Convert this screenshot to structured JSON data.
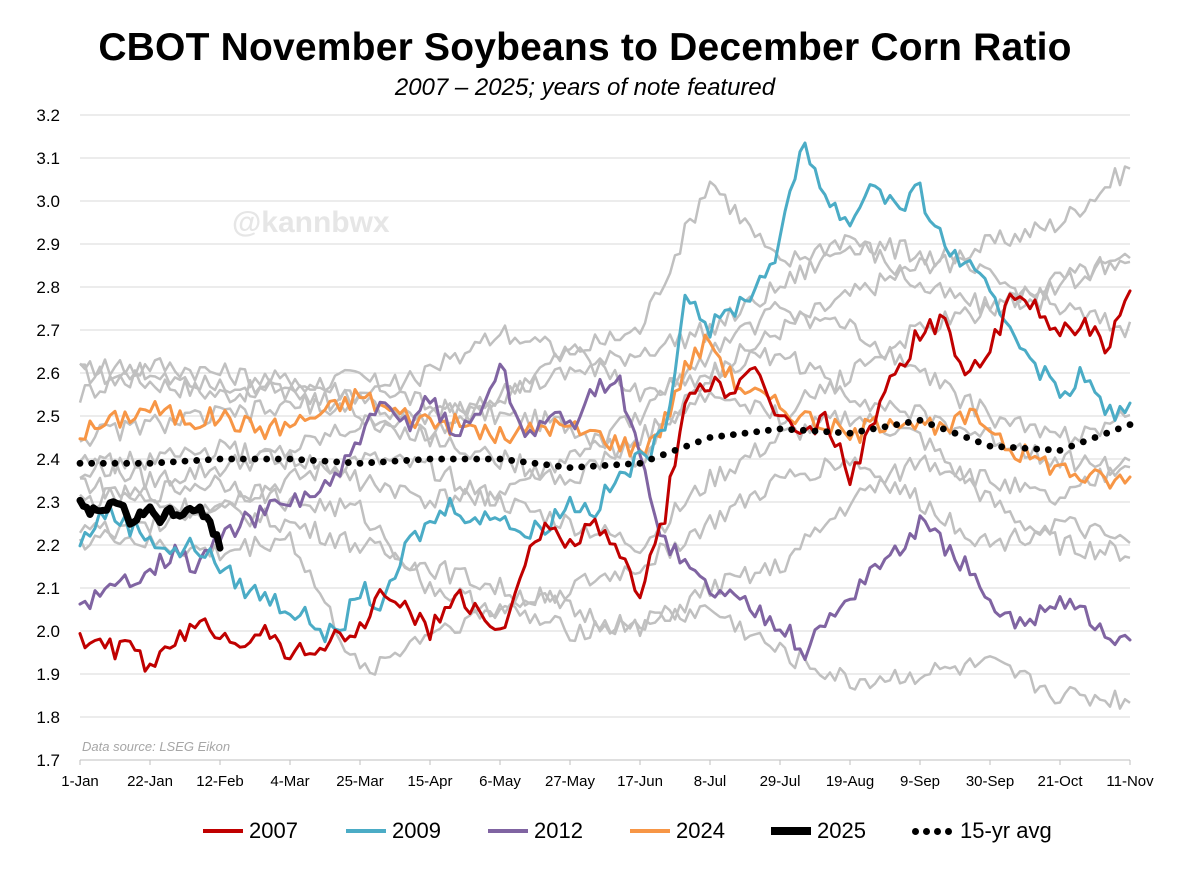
{
  "chart_data": {
    "type": "line",
    "title": "CBOT November Soybeans to December Corn Ratio",
    "subtitle": "2007 – 2025; years of note featured",
    "watermark": "@kannbwx",
    "source": "Data source: LSEG Eikon",
    "xlabel": "",
    "ylabel": "",
    "ylim": [
      1.7,
      3.2
    ],
    "yticks": [
      "3.2",
      "3.1",
      "3.0",
      "2.9",
      "2.8",
      "2.7",
      "2.6",
      "2.5",
      "2.4",
      "2.3",
      "2.2",
      "2.1",
      "2.0",
      "1.9",
      "1.8",
      "1.7"
    ],
    "xlim": [
      0,
      315
    ],
    "xticks": [
      {
        "label": "1-Jan",
        "day": 0
      },
      {
        "label": "22-Jan",
        "day": 21
      },
      {
        "label": "12-Feb",
        "day": 42
      },
      {
        "label": "4-Mar",
        "day": 63
      },
      {
        "label": "25-Mar",
        "day": 84
      },
      {
        "label": "15-Apr",
        "day": 105
      },
      {
        "label": "6-May",
        "day": 126
      },
      {
        "label": "27-May",
        "day": 147
      },
      {
        "label": "17-Jun",
        "day": 168
      },
      {
        "label": "8-Jul",
        "day": 189
      },
      {
        "label": "29-Jul",
        "day": 210
      },
      {
        "label": "19-Aug",
        "day": 231
      },
      {
        "label": "9-Sep",
        "day": 252
      },
      {
        "label": "30-Sep",
        "day": 273
      },
      {
        "label": "21-Oct",
        "day": 294
      },
      {
        "label": "11-Nov",
        "day": 315
      }
    ],
    "colors": {
      "2007": "#c00000",
      "2009": "#4bacc6",
      "2012": "#8064a2",
      "2024": "#f79646",
      "2025": "#000000",
      "avg": "#000000",
      "other": "#c0c0c0"
    },
    "background_series": [
      {
        "name": "other-a",
        "x": [
          0,
          21,
          42,
          63,
          84,
          105,
          126,
          147,
          168,
          189,
          210,
          231,
          252,
          273,
          294,
          315
        ],
        "values": [
          2.6,
          2.58,
          2.55,
          2.57,
          2.59,
          2.52,
          2.5,
          2.48,
          2.4,
          2.6,
          2.7,
          2.78,
          2.85,
          2.9,
          2.95,
          3.08
        ]
      },
      {
        "name": "other-b",
        "x": [
          0,
          21,
          42,
          63,
          84,
          105,
          126,
          147,
          168,
          189,
          210,
          231,
          252,
          273,
          294,
          315
        ],
        "values": [
          2.55,
          2.62,
          2.6,
          2.58,
          2.55,
          2.45,
          2.55,
          2.65,
          2.7,
          3.05,
          2.85,
          2.92,
          2.8,
          2.75,
          2.82,
          2.86
        ]
      },
      {
        "name": "other-c",
        "x": [
          0,
          21,
          42,
          63,
          84,
          105,
          126,
          147,
          168,
          189,
          210,
          231,
          252,
          273,
          294,
          315
        ],
        "values": [
          2.4,
          2.35,
          2.38,
          2.42,
          2.48,
          2.5,
          2.55,
          2.6,
          2.65,
          2.7,
          2.8,
          2.9,
          2.88,
          2.82,
          2.75,
          2.7
        ]
      },
      {
        "name": "other-d",
        "x": [
          0,
          21,
          42,
          63,
          84,
          105,
          126,
          147,
          168,
          189,
          210,
          231,
          252,
          273,
          294,
          315
        ],
        "values": [
          2.35,
          2.3,
          2.28,
          2.25,
          2.2,
          2.15,
          2.1,
          2.05,
          2.0,
          2.1,
          2.15,
          2.3,
          2.4,
          2.35,
          2.3,
          2.4
        ]
      },
      {
        "name": "other-e",
        "x": [
          0,
          21,
          42,
          63,
          84,
          105,
          126,
          147,
          168,
          189,
          210,
          231,
          252,
          273,
          294,
          315
        ],
        "values": [
          2.3,
          2.32,
          2.35,
          2.3,
          2.28,
          2.1,
          2.05,
          2.0,
          2.02,
          2.05,
          1.95,
          1.88,
          1.9,
          1.92,
          1.85,
          1.84
        ]
      },
      {
        "name": "other-f",
        "x": [
          0,
          21,
          42,
          63,
          84,
          105,
          126,
          147,
          168,
          189,
          210,
          231,
          252,
          273,
          294,
          315
        ],
        "values": [
          2.25,
          2.2,
          2.18,
          2.22,
          1.9,
          2.0,
          2.05,
          2.1,
          2.15,
          2.25,
          2.35,
          2.4,
          2.3,
          2.2,
          2.25,
          2.2
        ]
      },
      {
        "name": "other-g",
        "x": [
          0,
          21,
          42,
          63,
          84,
          105,
          126,
          147,
          168,
          189,
          210,
          231,
          252,
          273,
          294,
          315
        ],
        "values": [
          2.45,
          2.48,
          2.5,
          2.52,
          2.55,
          2.6,
          2.7,
          2.65,
          2.55,
          2.6,
          2.65,
          2.55,
          2.5,
          2.45,
          2.4,
          2.38
        ]
      },
      {
        "name": "other-h",
        "x": [
          0,
          21,
          42,
          63,
          84,
          105,
          126,
          147,
          168,
          189,
          210,
          231,
          252,
          273,
          294,
          315
        ],
        "values": [
          2.62,
          2.6,
          2.58,
          2.55,
          2.5,
          2.45,
          2.4,
          2.35,
          2.45,
          2.55,
          2.5,
          2.6,
          2.7,
          2.75,
          2.8,
          2.88
        ]
      },
      {
        "name": "other-i",
        "x": [
          0,
          21,
          42,
          63,
          84,
          105,
          126,
          147,
          168,
          189,
          210,
          231,
          252,
          273,
          294,
          315
        ],
        "values": [
          2.2,
          2.25,
          2.3,
          2.35,
          2.4,
          2.38,
          2.3,
          2.25,
          2.2,
          2.35,
          2.45,
          2.5,
          2.45,
          2.3,
          2.2,
          2.18
        ]
      },
      {
        "name": "other-j",
        "x": [
          0,
          21,
          42,
          63,
          84,
          105,
          126,
          147,
          168,
          189,
          210,
          231,
          252,
          273,
          294,
          315
        ],
        "values": [
          2.38,
          2.4,
          2.42,
          2.4,
          2.35,
          2.3,
          2.32,
          2.4,
          2.5,
          2.65,
          2.75,
          2.7,
          2.6,
          2.5,
          2.45,
          2.5
        ]
      }
    ],
    "series": [
      {
        "name": "2007",
        "x": [
          0,
          7,
          14,
          21,
          28,
          35,
          42,
          49,
          56,
          63,
          70,
          77,
          84,
          91,
          98,
          105,
          112,
          119,
          126,
          133,
          140,
          147,
          154,
          161,
          168,
          175,
          182,
          189,
          196,
          203,
          210,
          217,
          224,
          231,
          238,
          245,
          252,
          259,
          266,
          273,
          280,
          287,
          294,
          301,
          308,
          315
        ],
        "values": [
          1.99,
          1.96,
          1.96,
          1.92,
          1.96,
          2.02,
          2.0,
          1.98,
          1.99,
          1.95,
          1.96,
          1.98,
          2.0,
          2.1,
          2.05,
          2.0,
          2.08,
          2.05,
          2.0,
          2.15,
          2.24,
          2.2,
          2.25,
          2.18,
          2.1,
          2.25,
          2.55,
          2.58,
          2.55,
          2.6,
          2.5,
          2.45,
          2.5,
          2.35,
          2.5,
          2.6,
          2.7,
          2.72,
          2.6,
          2.65,
          2.78,
          2.75,
          2.7,
          2.72,
          2.65,
          2.78
        ]
      },
      {
        "name": "2009",
        "x": [
          0,
          7,
          14,
          21,
          28,
          35,
          42,
          49,
          56,
          63,
          70,
          77,
          84,
          91,
          98,
          105,
          112,
          119,
          126,
          133,
          140,
          147,
          154,
          161,
          168,
          175,
          182,
          189,
          196,
          203,
          210,
          217,
          224,
          231,
          238,
          245,
          252,
          259,
          266,
          273,
          280,
          287,
          294,
          301,
          308,
          315
        ],
        "values": [
          2.2,
          2.28,
          2.25,
          2.22,
          2.18,
          2.2,
          2.15,
          2.1,
          2.08,
          2.05,
          2.02,
          1.98,
          2.1,
          2.05,
          2.2,
          2.25,
          2.3,
          2.25,
          2.28,
          2.22,
          2.25,
          2.3,
          2.28,
          2.35,
          2.4,
          2.45,
          2.8,
          2.7,
          2.75,
          2.8,
          2.9,
          3.15,
          3.0,
          2.95,
          3.05,
          2.98,
          3.02,
          2.9,
          2.85,
          2.78,
          2.7,
          2.62,
          2.55,
          2.6,
          2.5,
          2.52
        ]
      },
      {
        "name": "2012",
        "x": [
          0,
          7,
          14,
          21,
          28,
          35,
          42,
          49,
          56,
          63,
          70,
          77,
          84,
          91,
          98,
          105,
          112,
          119,
          126,
          133,
          140,
          147,
          154,
          161,
          168,
          175,
          182,
          189,
          196,
          203,
          210,
          217,
          224,
          231,
          238,
          245,
          252,
          259,
          266,
          273,
          280,
          287,
          294,
          301,
          308,
          315
        ],
        "values": [
          2.07,
          2.08,
          2.12,
          2.15,
          2.18,
          2.15,
          2.22,
          2.25,
          2.28,
          2.3,
          2.32,
          2.35,
          2.45,
          2.52,
          2.48,
          2.55,
          2.45,
          2.5,
          2.62,
          2.45,
          2.5,
          2.48,
          2.55,
          2.6,
          2.4,
          2.22,
          2.15,
          2.1,
          2.08,
          2.05,
          2.02,
          1.95,
          2.02,
          2.08,
          2.15,
          2.18,
          2.25,
          2.2,
          2.15,
          2.05,
          2.02,
          2.04,
          2.08,
          2.05,
          1.98,
          1.97
        ]
      },
      {
        "name": "2024",
        "x": [
          0,
          7,
          14,
          21,
          28,
          35,
          42,
          49,
          56,
          63,
          70,
          77,
          84,
          91,
          98,
          105,
          112,
          119,
          126,
          133,
          140,
          147,
          154,
          161,
          168,
          175,
          182,
          189,
          196,
          203,
          210,
          217,
          224,
          231,
          238,
          245,
          252,
          259,
          266,
          273,
          280,
          287,
          294,
          301,
          308,
          315
        ],
        "values": [
          2.46,
          2.48,
          2.5,
          2.52,
          2.5,
          2.49,
          2.5,
          2.48,
          2.47,
          2.48,
          2.5,
          2.52,
          2.55,
          2.52,
          2.5,
          2.49,
          2.48,
          2.47,
          2.45,
          2.46,
          2.48,
          2.47,
          2.46,
          2.44,
          2.42,
          2.48,
          2.62,
          2.68,
          2.58,
          2.55,
          2.52,
          2.5,
          2.48,
          2.45,
          2.48,
          2.5,
          2.48,
          2.46,
          2.5,
          2.48,
          2.42,
          2.4,
          2.38,
          2.36,
          2.35,
          2.35
        ]
      },
      {
        "name": "2025",
        "x": [
          0,
          3,
          6,
          9,
          12,
          15,
          18,
          21,
          24,
          27,
          30,
          33,
          36,
          39,
          42
        ],
        "values": [
          2.3,
          2.28,
          2.27,
          2.29,
          2.3,
          2.25,
          2.27,
          2.28,
          2.26,
          2.28,
          2.27,
          2.29,
          2.28,
          2.25,
          2.2
        ]
      },
      {
        "name": "15-yr avg",
        "x": [
          0,
          21,
          42,
          63,
          84,
          105,
          126,
          147,
          168,
          189,
          210,
          231,
          252,
          273,
          294,
          315
        ],
        "values": [
          2.39,
          2.39,
          2.4,
          2.4,
          2.39,
          2.4,
          2.4,
          2.38,
          2.39,
          2.45,
          2.47,
          2.46,
          2.49,
          2.43,
          2.42,
          2.48
        ]
      }
    ],
    "legend": [
      {
        "label": "2007",
        "key": "2007",
        "style": "line"
      },
      {
        "label": "2009",
        "key": "2009",
        "style": "line"
      },
      {
        "label": "2012",
        "key": "2012",
        "style": "line"
      },
      {
        "label": "2024",
        "key": "2024",
        "style": "line"
      },
      {
        "label": "2025",
        "key": "2025",
        "style": "thick"
      },
      {
        "label": "15-yr avg",
        "key": "avg",
        "style": "dots"
      }
    ],
    "legend_position": "bottom",
    "grid": true
  }
}
